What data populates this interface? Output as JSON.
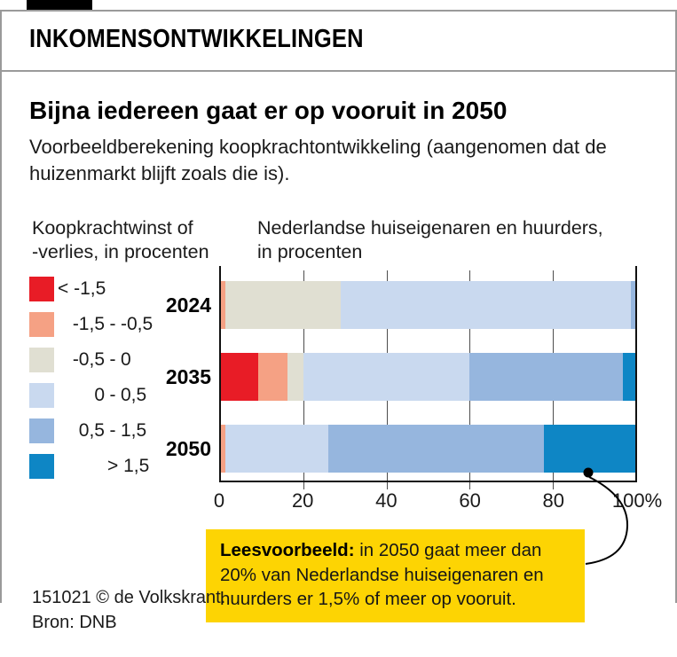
{
  "header": {
    "kicker": "INKOMENSONTWIKKELINGEN"
  },
  "article": {
    "title": "Bijna iedereen gaat er op vooruit in 2050",
    "subtitle": "Voorbeeldberekening koopkrachtontwikkeling (aangenomen dat de huizenmarkt blijft zoals die is)."
  },
  "legend": {
    "title_line1": "Koopkrachtwinst of",
    "title_line2": "-verlies, in procenten",
    "items": [
      {
        "color": "#e81c26",
        "style": "single-left",
        "label": "< -1,5"
      },
      {
        "color": "#f5a184",
        "style": "range",
        "from": "-1,5",
        "dash": "-",
        "to": "-0,5"
      },
      {
        "color": "#e0dfd2",
        "style": "range",
        "from": "-0,5",
        "dash": "-",
        "to": "0"
      },
      {
        "color": "#c9d9ef",
        "style": "range",
        "from": "0",
        "dash": "-",
        "to": "0,5"
      },
      {
        "color": "#96b6de",
        "style": "range",
        "from": "0,5",
        "dash": "-",
        "to": "1,5"
      },
      {
        "color": "#0e86c5",
        "style": "single-right",
        "label": "> 1,5"
      }
    ]
  },
  "chart": {
    "title_line1": "Nederlandse huiseigenaren en huurders,",
    "title_line2": "in procenten"
  },
  "chart_data": {
    "type": "bar",
    "orientation": "horizontal",
    "stacked": true,
    "title": "Nederlandse huiseigenaren en huurders, in procenten",
    "categories": [
      "2024",
      "2035",
      "2050"
    ],
    "series": [
      {
        "name": "< -1,5",
        "color": "#e81c26",
        "values": [
          0,
          9,
          0
        ]
      },
      {
        "name": "-1,5 - -0,5",
        "color": "#f5a184",
        "values": [
          1,
          7,
          1
        ]
      },
      {
        "name": "-0,5 - 0",
        "color": "#e0dfd2",
        "values": [
          28,
          4,
          0
        ]
      },
      {
        "name": "0 - 0,5",
        "color": "#c9d9ef",
        "values": [
          70,
          40,
          25
        ]
      },
      {
        "name": "0,5 - 1,5",
        "color": "#96b6de",
        "values": [
          1,
          37,
          52
        ]
      },
      {
        "name": "> 1,5",
        "color": "#0e86c5",
        "values": [
          0,
          3,
          22
        ]
      }
    ],
    "xlim": [
      0,
      100
    ],
    "x_ticks": [
      0,
      20,
      40,
      60,
      80,
      100
    ],
    "x_tick_labels": [
      "0",
      "20",
      "40",
      "60",
      "80",
      "100%"
    ],
    "grid": true,
    "legend_position": "left",
    "annotation_target": {
      "category": "2050",
      "series": "> 1,5"
    }
  },
  "annotation": {
    "lead": "Leesvoorbeeld:",
    "text": " in 2050 gaat meer dan 20% van Nederlandse huiseigenaren en huurders er 1,5% of meer op vooruit."
  },
  "footer": {
    "credit": "151021 © de Volkskrant.",
    "source": "Bron: DNB"
  },
  "colors": {
    "annotation_bg": "#fdd403",
    "frame_gray": "#9a9a9a",
    "axis_black": "#111111"
  }
}
